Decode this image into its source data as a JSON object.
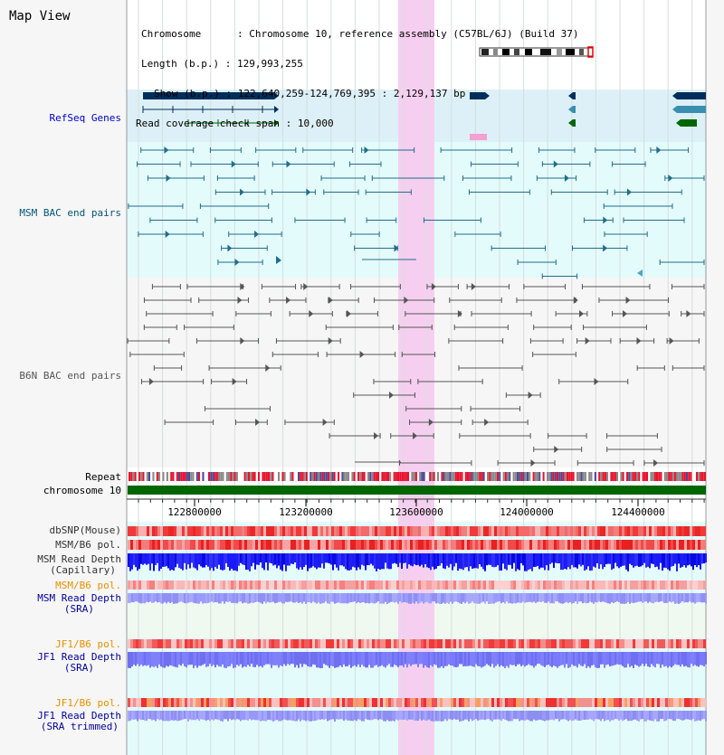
{
  "title": "Map View",
  "info": {
    "chromosome_key": "Chromosome",
    "chromosome_val": "Chromosome 10, reference assembly (C57BL/6J) (Build 37)",
    "length_key": "Length (b.p.)",
    "length_val": "129,993,255",
    "show_key": "Show (b.p.)",
    "show_val": "122,640,259-124,769,395 : 2,129,137 bp",
    "span_key": "Read coverage check span",
    "span_val": "10,000"
  },
  "tracks": {
    "refseq": "RefSeq Genes",
    "msm_bac": "MSM BAC end pairs",
    "b6n_bac": "B6N BAC end pairs",
    "repeat": "Repeat",
    "chromosome": "chromosome 10",
    "dbsnp": "dbSNP(Mouse)",
    "msm_b6_pol_1": "MSM/B6 pol.",
    "msm_depth_cap_1": "MSM Read Depth",
    "msm_depth_cap_2": "(Capillary)",
    "msm_b6_pol_2": "MSM/B6 pol.",
    "msm_depth_sra_1": "MSM Read Depth",
    "msm_depth_sra_2": "(SRA)",
    "jf1_b6_pol_1": "JF1/B6 pol.",
    "jf1_depth_sra_1": "JF1 Read Depth",
    "jf1_depth_sra_2": "(SRA)",
    "jf1_b6_pol_2": "JF1/B6 pol.",
    "jf1_depth_trim_1": "JF1 Read Depth",
    "jf1_depth_trim_2": "(SRA trimmed)"
  },
  "axis_ticks": [
    "122800000",
    "123200000",
    "123600000",
    "124000000",
    "124400000"
  ],
  "colors": {
    "refseq_label": "#0000cc",
    "msm_bac_label": "#005577",
    "b6n_bac_label": "#555555",
    "pol_label": "#e89000",
    "read_depth_label": "#000099",
    "gene_navy": "#002e5c",
    "gene_teal": "#3a8fb0",
    "gene_green": "#006600",
    "msm_pair": "#1f6e8c",
    "b6n_pair": "#555555",
    "highlight": "#f6cff0"
  }
}
